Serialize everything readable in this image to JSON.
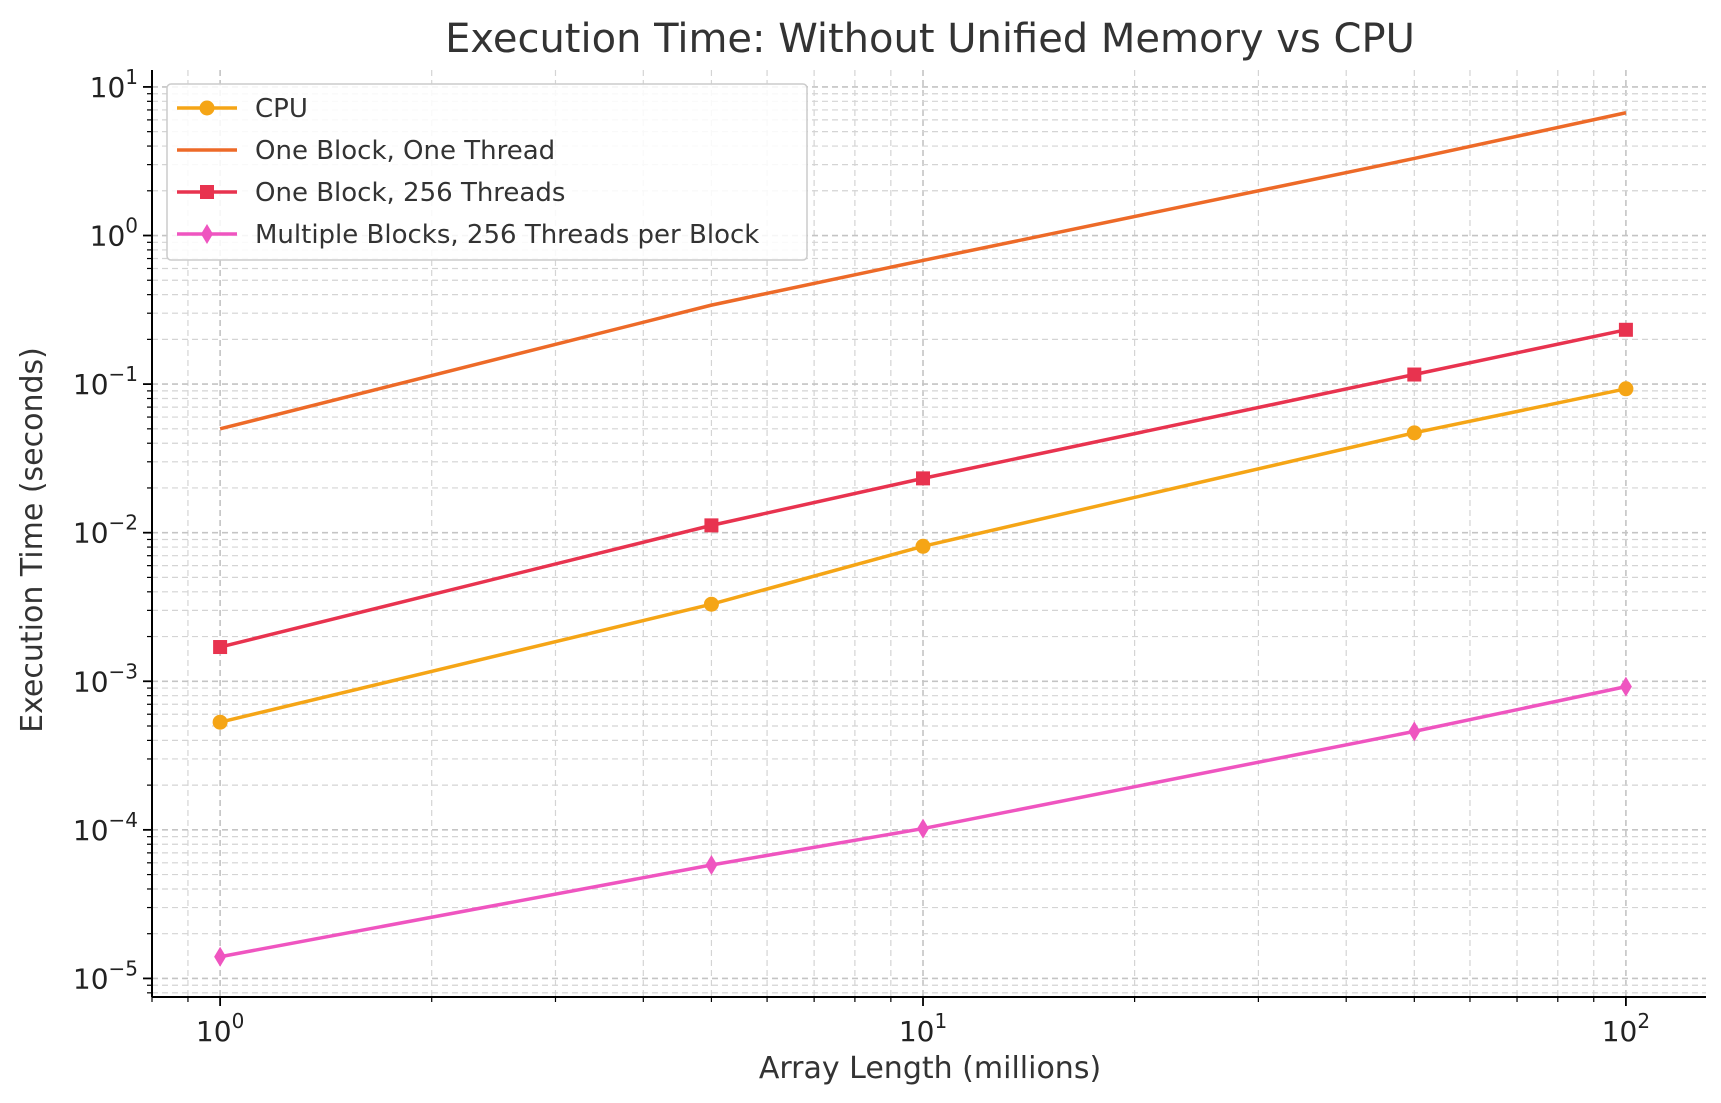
{
  "chart_data": {
    "type": "line",
    "title": "Execution Time: Without Unified Memory vs CPU",
    "xlabel": "Array Length (millions)",
    "ylabel": "Execution Time (seconds)",
    "x_scale": "log",
    "y_scale": "log",
    "xlim": [
      0.8,
      130
    ],
    "ylim": [
      7.5e-06,
      13
    ],
    "x_ticks": [
      {
        "value": 1,
        "base": "10",
        "exp": "0"
      },
      {
        "value": 10,
        "base": "10",
        "exp": "1"
      },
      {
        "value": 100,
        "base": "10",
        "exp": "2"
      }
    ],
    "y_ticks": [
      {
        "value": 1e-05,
        "base": "10",
        "exp": "−5"
      },
      {
        "value": 0.0001,
        "base": "10",
        "exp": "−4"
      },
      {
        "value": 0.001,
        "base": "10",
        "exp": "−3"
      },
      {
        "value": 0.01,
        "base": "10",
        "exp": "−2"
      },
      {
        "value": 0.1,
        "base": "10",
        "exp": "−1"
      },
      {
        "value": 1,
        "base": "10",
        "exp": "0"
      },
      {
        "value": 10,
        "base": "10",
        "exp": "1"
      }
    ],
    "grid": true,
    "legend_position": "top-left",
    "x": [
      1,
      5,
      10,
      50,
      100
    ],
    "series": [
      {
        "name": "CPU",
        "color": "#f5a516",
        "marker": "circle",
        "values": [
          0.00053,
          0.0033,
          0.0081,
          0.047,
          0.093
        ]
      },
      {
        "name": "One Block, One Thread",
        "color": "#ed6a28",
        "marker": "none",
        "values": [
          0.05,
          0.34,
          0.68,
          3.3,
          6.7
        ]
      },
      {
        "name": "One Block, 256 Threads",
        "color": "#e8334f",
        "marker": "square",
        "values": [
          0.0017,
          0.0112,
          0.0232,
          0.116,
          0.232
        ]
      },
      {
        "name": "Multiple Blocks, 256 Threads per Block",
        "color": "#ef55c0",
        "marker": "diamond",
        "values": [
          1.4e-05,
          5.8e-05,
          0.000102,
          0.00046,
          0.00092
        ]
      }
    ]
  }
}
